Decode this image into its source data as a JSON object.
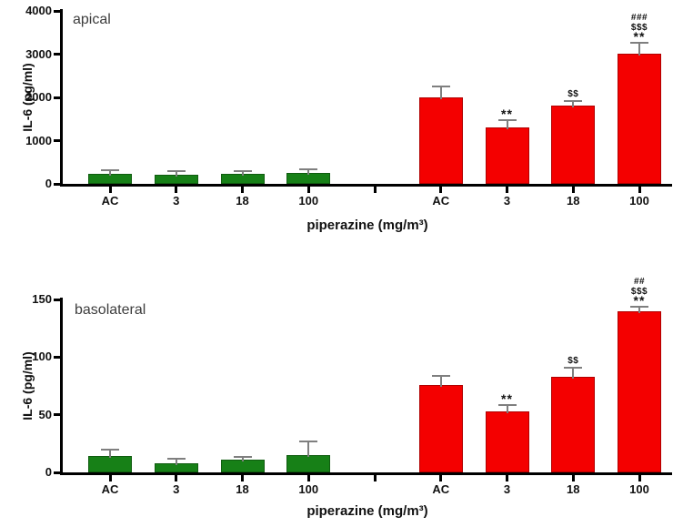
{
  "colors": {
    "green_bar": "#178017",
    "red_bar": "#f40000",
    "error_bar": "#7f7f7f",
    "axis": "#000000",
    "panel_label": "#3d3d3d",
    "text": "#111111"
  },
  "chart_data": [
    {
      "type": "bar",
      "panel_label": "apical",
      "ylabel": "IL-6 (pg/ml)",
      "xlabel": "piperazine (mg/m³)",
      "ylim": [
        0,
        4000
      ],
      "yticks": [
        0,
        1000,
        2000,
        3000,
        4000
      ],
      "grid": false,
      "legend": "none",
      "groups": [
        {
          "name": "green",
          "color": "#178017",
          "categories": [
            "AC",
            "3",
            "18",
            "100"
          ],
          "values": [
            240,
            205,
            225,
            245
          ],
          "errors_upper": [
            50,
            60,
            45,
            65
          ],
          "annotations": [
            [],
            [],
            [],
            []
          ]
        },
        {
          "name": "red",
          "color": "#f40000",
          "categories": [
            "AC",
            "3",
            "18",
            "100"
          ],
          "values": [
            2000,
            1310,
            1810,
            3020
          ],
          "errors_upper": [
            230,
            150,
            80,
            230
          ],
          "annotations": [
            [],
            [
              "**"
            ],
            [
              "$$"
            ],
            [
              "###",
              "$$$",
              "**"
            ]
          ]
        }
      ]
    },
    {
      "type": "bar",
      "panel_label": "basolateral",
      "ylabel": "IL-6 (pg/ml)",
      "xlabel": "piperazine (mg/m³)",
      "ylim": [
        0,
        150
      ],
      "yticks": [
        0,
        50,
        100,
        150
      ],
      "grid": false,
      "legend": "none",
      "groups": [
        {
          "name": "green",
          "color": "#178017",
          "categories": [
            "AC",
            "3",
            "18",
            "100"
          ],
          "values": [
            14,
            8,
            11,
            15
          ],
          "errors_upper": [
            5,
            3,
            2,
            11
          ],
          "annotations": [
            [],
            [],
            [],
            []
          ]
        },
        {
          "name": "red",
          "color": "#f40000",
          "categories": [
            "AC",
            "3",
            "18",
            "100"
          ],
          "values": [
            76,
            53,
            83,
            140
          ],
          "errors_upper": [
            7,
            5,
            7,
            3
          ],
          "annotations": [
            [],
            [
              "**"
            ],
            [
              "$$"
            ],
            [
              "##",
              "$$$",
              "**"
            ]
          ]
        }
      ]
    }
  ]
}
